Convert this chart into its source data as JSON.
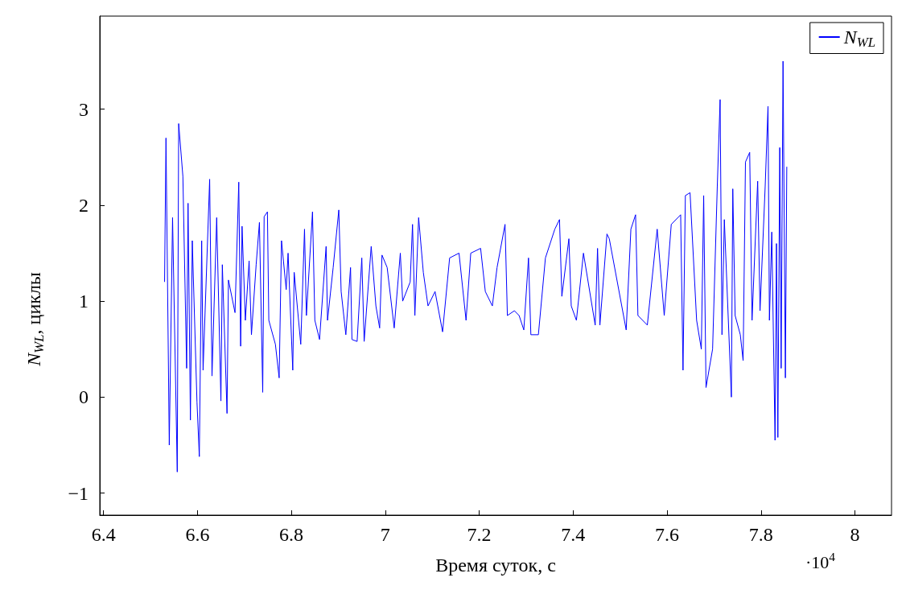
{
  "chart_data": {
    "type": "line",
    "xlabel": "Время суток, с",
    "ylabel": "N$_{WL}$, циклы",
    "annotations": [
      "·10$^{4}$"
    ],
    "xlim": [
      6.392,
      8.078
    ],
    "ylim": [
      -1.23,
      3.97
    ],
    "xticks": [
      6.4,
      6.6,
      6.8,
      7,
      7.2,
      7.4,
      7.6,
      7.8,
      8
    ],
    "yticks": [
      -1,
      0,
      1,
      2,
      3
    ],
    "grid": false,
    "legend": "top right",
    "marker": "none",
    "line_style": "solid",
    "series": [
      {
        "name": "N$_{WL}$",
        "color": "#0000ff",
        "x": [
          6.53,
          6.533,
          6.54,
          6.547,
          6.557,
          6.56,
          6.569,
          6.577,
          6.58,
          6.585,
          6.589,
          6.599,
          6.604,
          6.609,
          6.612,
          6.626,
          6.631,
          6.641,
          6.65,
          6.653,
          6.663,
          6.666,
          6.68,
          6.688,
          6.692,
          6.695,
          6.702,
          6.71,
          6.715,
          6.725,
          6.732,
          6.739,
          6.742,
          6.749,
          6.752,
          6.766,
          6.774,
          6.779,
          6.789,
          6.793,
          6.803,
          6.806,
          6.82,
          6.828,
          6.832,
          6.845,
          6.85,
          6.86,
          6.874,
          6.877,
          6.889,
          6.901,
          6.906,
          6.916,
          6.926,
          6.929,
          6.94,
          6.95,
          6.955,
          6.97,
          6.98,
          6.988,
          6.993,
          7.004,
          7.019,
          7.032,
          7.037,
          7.053,
          7.058,
          7.063,
          7.071,
          7.081,
          7.091,
          7.106,
          7.122,
          7.137,
          7.157,
          7.172,
          7.182,
          7.203,
          7.213,
          7.228,
          7.238,
          7.255,
          7.26,
          7.275,
          7.285,
          7.295,
          7.305,
          7.31,
          7.326,
          7.341,
          7.361,
          7.371,
          7.376,
          7.391,
          7.396,
          7.407,
          7.422,
          7.447,
          7.452,
          7.457,
          7.472,
          7.477,
          7.513,
          7.523,
          7.533,
          7.538,
          7.558,
          7.579,
          7.594,
          7.609,
          7.629,
          7.634,
          7.639,
          7.649,
          7.663,
          7.673,
          7.678,
          7.683,
          7.697,
          7.707,
          7.713,
          7.717,
          7.722,
          7.737,
          7.74,
          7.745,
          7.756,
          7.762,
          7.767,
          7.776,
          7.781,
          7.793,
          7.798,
          7.809,
          7.815,
          7.818,
          7.823,
          7.83,
          7.833,
          7.836,
          7.84,
          7.843,
          7.847,
          7.852,
          7.855
        ],
        "values": [
          1.2,
          2.7,
          -0.5,
          1.87,
          -0.78,
          2.85,
          2.3,
          0.3,
          2.02,
          -0.24,
          1.63,
          -0.05,
          -0.62,
          1.63,
          0.28,
          2.27,
          0.22,
          1.87,
          -0.04,
          1.38,
          -0.17,
          1.22,
          0.88,
          2.24,
          0.53,
          1.78,
          0.8,
          1.42,
          0.65,
          1.38,
          1.82,
          0.05,
          1.88,
          1.93,
          0.8,
          0.55,
          0.2,
          1.63,
          1.12,
          1.5,
          0.28,
          1.3,
          0.55,
          1.75,
          0.85,
          1.93,
          0.8,
          0.6,
          1.57,
          0.8,
          1.35,
          1.95,
          1.1,
          0.65,
          1.35,
          0.6,
          0.58,
          1.45,
          0.58,
          1.57,
          0.95,
          0.72,
          1.48,
          1.35,
          0.72,
          1.5,
          1.0,
          1.2,
          1.8,
          0.85,
          1.87,
          1.3,
          0.95,
          1.1,
          0.68,
          1.45,
          1.5,
          0.8,
          1.5,
          1.55,
          1.1,
          0.95,
          1.35,
          1.8,
          0.85,
          0.9,
          0.85,
          0.7,
          1.45,
          0.65,
          0.65,
          1.45,
          1.75,
          1.85,
          1.05,
          1.65,
          0.95,
          0.8,
          1.5,
          0.75,
          1.55,
          0.75,
          1.7,
          1.65,
          0.7,
          1.75,
          1.9,
          0.85,
          0.75,
          1.75,
          0.85,
          1.8,
          1.9,
          0.28,
          2.1,
          2.13,
          0.8,
          0.5,
          2.1,
          0.1,
          0.5,
          2.2,
          3.1,
          0.65,
          1.85,
          0.0,
          2.17,
          0.85,
          0.65,
          0.38,
          2.45,
          2.55,
          0.8,
          2.25,
          0.9,
          2.2,
          3.03,
          0.8,
          1.72,
          -0.45,
          1.6,
          -0.42,
          2.6,
          0.3,
          3.5,
          0.2,
          2.4
        ]
      }
    ]
  }
}
